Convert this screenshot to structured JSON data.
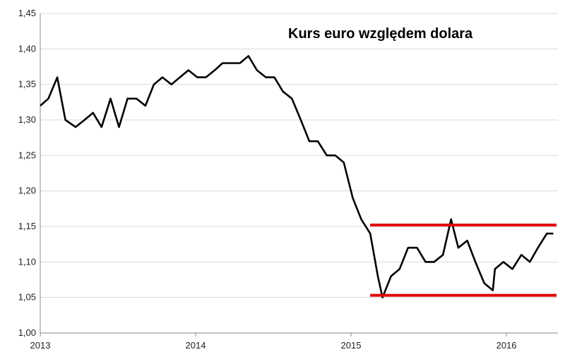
{
  "chart_data": {
    "type": "line",
    "title": "Kurs euro względem dolara",
    "xlabel": "",
    "ylabel": "",
    "x_tick_labels": [
      "2013",
      "2014",
      "2015",
      "2016"
    ],
    "y_tick_labels": [
      "1,00",
      "1,05",
      "1,10",
      "1,15",
      "1,20",
      "1,25",
      "1,30",
      "1,35",
      "1,40",
      "1,45"
    ],
    "xlim": [
      "2013-01-01",
      "2016-05-01"
    ],
    "ylim": [
      1.0,
      1.45
    ],
    "grid": "horizontal",
    "series": [
      {
        "color": "#000000",
        "x": [
          "2013-01-01",
          "2013-01-20",
          "2013-02-10",
          "2013-03-01",
          "2013-03-25",
          "2013-04-15",
          "2013-05-05",
          "2013-05-25",
          "2013-06-15",
          "2013-07-05",
          "2013-07-25",
          "2013-08-15",
          "2013-09-05",
          "2013-09-25",
          "2013-10-15",
          "2013-11-05",
          "2013-11-25",
          "2013-12-15",
          "2014-01-05",
          "2014-01-25",
          "2014-02-15",
          "2014-03-05",
          "2014-03-25",
          "2014-04-15",
          "2014-05-05",
          "2014-05-25",
          "2014-06-15",
          "2014-07-05",
          "2014-07-25",
          "2014-08-15",
          "2014-09-05",
          "2014-09-25",
          "2014-10-15",
          "2014-11-05",
          "2014-11-25",
          "2014-12-15",
          "2015-01-05",
          "2015-01-25",
          "2015-02-15",
          "2015-03-05",
          "2015-03-16",
          "2015-04-05",
          "2015-04-25",
          "2015-05-15",
          "2015-06-05",
          "2015-06-25",
          "2015-07-15",
          "2015-08-05",
          "2015-08-24",
          "2015-09-10",
          "2015-10-01",
          "2015-10-20",
          "2015-11-10",
          "2015-11-30",
          "2015-12-05",
          "2015-12-25",
          "2016-01-15",
          "2016-02-05",
          "2016-02-25",
          "2016-03-15",
          "2016-04-05",
          "2016-04-20"
        ],
        "values": [
          1.32,
          1.33,
          1.36,
          1.3,
          1.29,
          1.3,
          1.31,
          1.29,
          1.33,
          1.29,
          1.33,
          1.33,
          1.32,
          1.35,
          1.36,
          1.35,
          1.36,
          1.37,
          1.36,
          1.36,
          1.37,
          1.38,
          1.38,
          1.38,
          1.39,
          1.37,
          1.36,
          1.36,
          1.34,
          1.33,
          1.3,
          1.27,
          1.27,
          1.25,
          1.25,
          1.24,
          1.19,
          1.16,
          1.14,
          1.08,
          1.05,
          1.08,
          1.09,
          1.12,
          1.12,
          1.1,
          1.1,
          1.11,
          1.16,
          1.12,
          1.13,
          1.1,
          1.07,
          1.06,
          1.09,
          1.1,
          1.09,
          1.11,
          1.1,
          1.12,
          1.14,
          1.14
        ]
      }
    ],
    "annotations": [
      {
        "type": "hline",
        "y": 1.152,
        "color": "#e00000"
      },
      {
        "type": "hline",
        "y": 1.053,
        "color": "#e00000"
      }
    ]
  }
}
